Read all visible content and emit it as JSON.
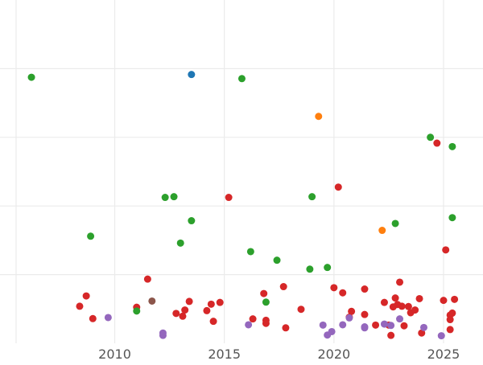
{
  "chart_data": {
    "type": "scatter",
    "title": "",
    "xlabel": "",
    "ylabel": "",
    "xlim": [
      2005.5,
      2026.8
    ],
    "ylim": [
      0,
      1.0
    ],
    "x_ticks": [
      2010,
      2015,
      2020,
      2025
    ],
    "x_tick_labels": [
      "2010",
      "2015",
      "2020",
      "2025"
    ],
    "y_gridlines": [
      0.2,
      0.4,
      0.6,
      0.8
    ],
    "grid": true,
    "legend": "none",
    "colors": {
      "red": "#d62728",
      "green": "#2ca02c",
      "blue": "#1f77b4",
      "orange": "#ff7f0e",
      "purple": "#9467bd",
      "brown": "#8c564b"
    },
    "series": [
      {
        "color": "red",
        "points": [
          [
            2008.4,
            0.108
          ],
          [
            2008.7,
            0.138
          ],
          [
            2009.0,
            0.072
          ],
          [
            2011.0,
            0.105
          ],
          [
            2011.5,
            0.187
          ],
          [
            2012.8,
            0.087
          ],
          [
            2013.1,
            0.079
          ],
          [
            2013.2,
            0.097
          ],
          [
            2013.4,
            0.122
          ],
          [
            2014.2,
            0.095
          ],
          [
            2014.4,
            0.114
          ],
          [
            2014.5,
            0.064
          ],
          [
            2014.8,
            0.119
          ],
          [
            2015.2,
            0.425
          ],
          [
            2016.3,
            0.071
          ],
          [
            2016.8,
            0.145
          ],
          [
            2016.9,
            0.067
          ],
          [
            2016.9,
            0.058
          ],
          [
            2017.7,
            0.165
          ],
          [
            2017.8,
            0.045
          ],
          [
            2018.5,
            0.099
          ],
          [
            2020.0,
            0.162
          ],
          [
            2020.2,
            0.455
          ],
          [
            2020.4,
            0.147
          ],
          [
            2020.7,
            0.076
          ],
          [
            2020.8,
            0.093
          ],
          [
            2021.4,
            0.158
          ],
          [
            2021.4,
            0.084
          ],
          [
            2021.9,
            0.053
          ],
          [
            2022.3,
            0.119
          ],
          [
            2022.5,
            0.053
          ],
          [
            2022.6,
            0.023
          ],
          [
            2022.7,
            0.106
          ],
          [
            2022.8,
            0.132
          ],
          [
            2022.9,
            0.113
          ],
          [
            2023.0,
            0.178
          ],
          [
            2023.1,
            0.108
          ],
          [
            2023.2,
            0.051
          ],
          [
            2023.4,
            0.107
          ],
          [
            2023.5,
            0.089
          ],
          [
            2023.7,
            0.097
          ],
          [
            2023.9,
            0.13
          ],
          [
            2024.0,
            0.03
          ],
          [
            2024.7,
            0.583
          ],
          [
            2025.0,
            0.125
          ],
          [
            2025.1,
            0.272
          ],
          [
            2025.3,
            0.04
          ],
          [
            2025.3,
            0.082
          ],
          [
            2025.3,
            0.069
          ],
          [
            2025.4,
            0.088
          ],
          [
            2025.5,
            0.128
          ]
        ]
      },
      {
        "color": "green",
        "points": [
          [
            2006.2,
            0.775
          ],
          [
            2008.9,
            0.312
          ],
          [
            2011.0,
            0.094
          ],
          [
            2012.3,
            0.425
          ],
          [
            2012.7,
            0.427
          ],
          [
            2013.0,
            0.292
          ],
          [
            2013.5,
            0.357
          ],
          [
            2015.8,
            0.771
          ],
          [
            2016.2,
            0.267
          ],
          [
            2016.9,
            0.12
          ],
          [
            2017.4,
            0.242
          ],
          [
            2018.9,
            0.216
          ],
          [
            2019.0,
            0.427
          ],
          [
            2019.7,
            0.221
          ],
          [
            2022.8,
            0.349
          ],
          [
            2024.4,
            0.6
          ],
          [
            2025.4,
            0.573
          ],
          [
            2025.4,
            0.366
          ]
        ]
      },
      {
        "color": "blue",
        "points": [
          [
            2013.5,
            0.783
          ]
        ]
      },
      {
        "color": "orange",
        "points": [
          [
            2019.3,
            0.661
          ],
          [
            2022.2,
            0.329
          ]
        ]
      },
      {
        "color": "purple",
        "points": [
          [
            2009.7,
            0.075
          ],
          [
            2012.2,
            0.03
          ],
          [
            2012.2,
            0.023
          ],
          [
            2016.1,
            0.054
          ],
          [
            2019.5,
            0.053
          ],
          [
            2019.7,
            0.024
          ],
          [
            2019.9,
            0.034
          ],
          [
            2020.4,
            0.054
          ],
          [
            2020.7,
            0.074
          ],
          [
            2021.4,
            0.045
          ],
          [
            2021.4,
            0.048
          ],
          [
            2022.3,
            0.056
          ],
          [
            2022.6,
            0.052
          ],
          [
            2023.0,
            0.071
          ],
          [
            2024.1,
            0.046
          ],
          [
            2024.9,
            0.022
          ]
        ]
      },
      {
        "color": "brown",
        "points": [
          [
            2011.7,
            0.123
          ]
        ]
      }
    ]
  }
}
